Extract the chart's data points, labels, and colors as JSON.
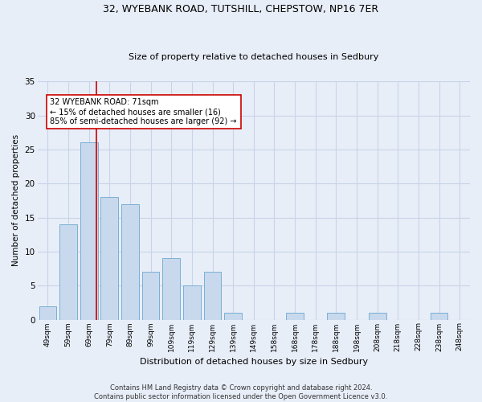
{
  "title1": "32, WYEBANK ROAD, TUTSHILL, CHEPSTOW, NP16 7ER",
  "title2": "Size of property relative to detached houses in Sedbury",
  "xlabel": "Distribution of detached houses by size in Sedbury",
  "ylabel": "Number of detached properties",
  "categories": [
    "49sqm",
    "59sqm",
    "69sqm",
    "79sqm",
    "89sqm",
    "99sqm",
    "109sqm",
    "119sqm",
    "129sqm",
    "139sqm",
    "149sqm",
    "158sqm",
    "168sqm",
    "178sqm",
    "188sqm",
    "198sqm",
    "208sqm",
    "218sqm",
    "228sqm",
    "238sqm",
    "248sqm"
  ],
  "values": [
    2,
    14,
    26,
    18,
    17,
    7,
    9,
    5,
    7,
    1,
    0,
    0,
    1,
    0,
    1,
    0,
    1,
    0,
    0,
    1,
    0
  ],
  "bar_color": "#c8d9ed",
  "bar_edge_color": "#7aafd4",
  "grid_color": "#c8d4e8",
  "background_color": "#e8eef8",
  "red_line_x": 2.35,
  "annotation_text": "32 WYEBANK ROAD: 71sqm\n← 15% of detached houses are smaller (16)\n85% of semi-detached houses are larger (92) →",
  "annotation_box_color": "#ffffff",
  "annotation_edge_color": "#cc0000",
  "annotation_text_color": "#000000",
  "footer1": "Contains HM Land Registry data © Crown copyright and database right 2024.",
  "footer2": "Contains public sector information licensed under the Open Government Licence v3.0.",
  "ylim": [
    0,
    35
  ],
  "yticks": [
    0,
    5,
    10,
    15,
    20,
    25,
    30,
    35
  ]
}
